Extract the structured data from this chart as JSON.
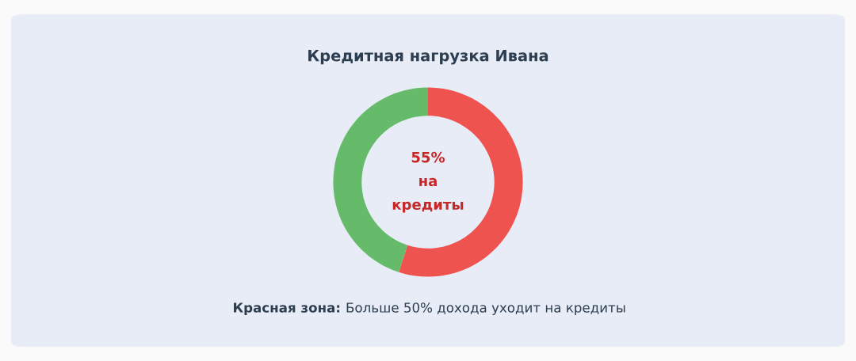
{
  "chart_data": {
    "type": "donut",
    "title": "Кредитная нагрузка Ивана",
    "categories": [
      null,
      null
    ],
    "values": [
      55,
      45
    ],
    "colors": [
      "#ef5350",
      "#66bb6a"
    ],
    "annotations": [
      "55% на кредиты",
      "Красная зона:",
      "Больше 50% дохода уходит на кредиты"
    ]
  }
}
